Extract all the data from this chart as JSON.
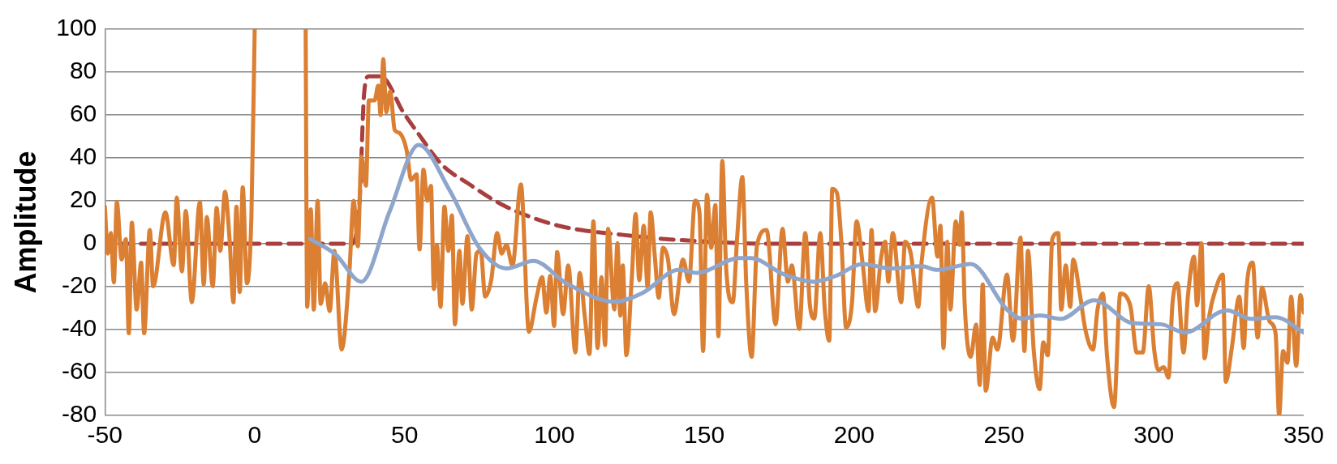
{
  "chart_data": {
    "type": "line",
    "ylabel": "Amplitude",
    "xlim": [
      -50,
      350
    ],
    "xticks": [
      -50,
      0,
      50,
      100,
      150,
      200,
      250,
      300,
      350
    ],
    "ylim": [
      -80,
      100
    ],
    "yticks": [
      -80,
      -60,
      -40,
      -20,
      0,
      20,
      40,
      60,
      80,
      100
    ],
    "grid": "y",
    "marker": "none",
    "legend": false,
    "series": [
      {
        "color": "#a83f3f",
        "line_style": "dashed",
        "x": [
          -45,
          0,
          17,
          32.5,
          35,
          36.5,
          38,
          42,
          49.7,
          53.7,
          62.7,
          71,
          82,
          92,
          102,
          113,
          123,
          136,
          158.5,
          171,
          200,
          250,
          300,
          350
        ],
        "values": [
          0,
          0,
          0,
          0,
          20,
          70,
          78,
          78,
          61,
          53,
          36.5,
          28.3,
          18.6,
          12.5,
          8.2,
          5.6,
          4.1,
          2.3,
          0.5,
          0,
          0,
          0,
          0,
          0
        ]
      },
      {
        "color": "#db7f33",
        "line_style": "solid",
        "x": [
          -50,
          -49,
          -48,
          -47,
          -46,
          -44.4,
          -43,
          -42,
          -41,
          -39.4,
          -37.9,
          -36.9,
          -35,
          -33.9,
          -29.8,
          -27,
          -26,
          -24.3,
          -23,
          -21,
          -18.3,
          -17,
          -16,
          -14,
          -12.7,
          -11.5,
          -9.9,
          -8.4,
          -7.1,
          -6.1,
          -5,
          -4,
          -2.6,
          -1.1,
          0,
          8,
          17,
          17.5,
          18.7,
          19.7,
          21,
          22,
          23.5,
          25,
          26.6,
          29,
          31.6,
          33,
          34.4,
          35.6,
          37.1,
          38.1,
          40,
          41.2,
          42,
          42.9,
          43.9,
          45.2,
          46.7,
          48.2,
          50.7,
          52.2,
          54,
          55,
          56.3,
          57.6,
          58.8,
          59.8,
          60.8,
          62,
          63.3,
          64.6,
          65.8,
          66.8,
          68.3,
          69.3,
          71,
          72.4,
          74,
          75.4,
          76.9,
          78.9,
          80.9,
          82.4,
          84,
          86,
          88.8,
          91.5,
          94,
          95.9,
          97.3,
          98.6,
          99.9,
          100.9,
          102.9,
          104.6,
          107,
          108.4,
          110.2,
          111.7,
          113,
          114.4,
          115.7,
          116.9,
          117.9,
          120,
          121,
          122,
          122.8,
          124,
          125.8,
          127.1,
          128.3,
          129.8,
          131.1,
          132.1,
          133.5,
          134.8,
          136.2,
          137.9,
          139.9,
          142.9,
          144.9,
          146.9,
          148.4,
          149.6,
          150.9,
          152.3,
          153.7,
          154.7,
          156,
          157.3,
          159.5,
          161,
          162.7,
          164,
          165.8,
          167.6,
          170.8,
          173.8,
          176.1,
          177.9,
          179.2,
          181.7,
          183.7,
          185.2,
          186.7,
          188.7,
          190.2,
          191.7,
          192.7,
          194.3,
          195.8,
          197.3,
          199.3,
          200.8,
          202.8,
          204.8,
          205.8,
          207,
          208.9,
          210.4,
          211.4,
          212.9,
          215.7,
          217,
          218.9,
          221.4,
          222.5,
          226,
          227.8,
          228.8,
          229.8,
          231.1,
          232.1,
          233.9,
          235.1,
          235.9,
          236.9,
          238.9,
          240.7,
          241.9,
          242.9,
          243.9,
          246.2,
          247.8,
          251,
          253,
          255.5,
          256.8,
          258,
          259.9,
          261.9,
          263.1,
          264.6,
          266.1,
          268.1,
          269.1,
          270.6,
          272.1,
          273.1,
          275.2,
          277.2,
          279.7,
          281.2,
          283,
          284.4,
          286.7,
          288.8,
          290.8,
          292.3,
          294.3,
          296.3,
          298.3,
          300.1,
          301.5,
          303.3,
          304.9,
          306.2,
          307.9,
          309.9,
          311.4,
          313.4,
          314.4,
          315.9,
          316.9,
          318.5,
          320.5,
          323,
          324,
          326,
          328.5,
          330,
          331,
          333,
          334.6,
          336.1,
          338.6,
          340.6,
          341.8,
          343.1,
          344.6,
          345.8,
          347.5,
          348.9,
          350
        ],
        "values": [
          17.3,
          -4.6,
          5,
          -18,
          19.4,
          -7.4,
          2.2,
          -41.7,
          9.8,
          -30.7,
          -8.8,
          -41.7,
          6.4,
          -19.8,
          14.6,
          -10,
          21.5,
          -12.9,
          15.3,
          -27.3,
          19.4,
          -19,
          12.5,
          -19.8,
          16.7,
          -3.3,
          24.2,
          2.2,
          -27.3,
          17.3,
          -22.5,
          26.3,
          -18.4,
          13.2,
          100,
          null,
          100,
          -29.4,
          16,
          -30.7,
          20,
          -28,
          -18.4,
          -31.4,
          -3.3,
          -49.3,
          -12.9,
          20,
          -1.2,
          40.7,
          27,
          66.8,
          66.8,
          73.7,
          60,
          86,
          61.3,
          71,
          53,
          51.7,
          43.4,
          29.7,
          32.4,
          -2.6,
          34.5,
          20.1,
          27,
          -21.1,
          -0.5,
          -29.4,
          17.3,
          -3.3,
          13.2,
          -37.6,
          -3.3,
          -28,
          3.6,
          -30.7,
          -4.6,
          -3.3,
          -24.6,
          -17,
          5,
          -4.6,
          -0.5,
          -10.1,
          27.6,
          -41,
          -25.2,
          -15.6,
          -32.1,
          -15,
          -38.3,
          -3.9,
          -32.8,
          -10.1,
          -50.7,
          -13.6,
          -34.9,
          -51.4,
          10.5,
          -48.6,
          -15.6,
          -47.2,
          7,
          -30.7,
          0.2,
          -33.5,
          -10.1,
          -52,
          -16.3,
          13.9,
          -17,
          8.4,
          -20.4,
          14.6,
          -6,
          -25.2,
          -1.9,
          -7.4,
          -32.8,
          -7.4,
          -17.7,
          20.1,
          14.6,
          -50,
          22.8,
          -1.9,
          18,
          -43.1,
          38.6,
          -11.5,
          -27.3,
          3.6,
          31.1,
          -18.4,
          -52.7,
          -0.5,
          6.4,
          -37.6,
          7,
          -17.7,
          -10.1,
          -39.7,
          5,
          -28,
          -34.9,
          5,
          -30.7,
          -45.2,
          25.6,
          23.5,
          -0.5,
          -39,
          -27.3,
          10.5,
          -8.8,
          -31.4,
          6.4,
          -31.4,
          -7.4,
          0.9,
          -17.7,
          5,
          -27.3,
          0.9,
          -4.6,
          -29.4,
          -8.8,
          21.5,
          -6,
          8.4,
          -48.6,
          0.9,
          -30.7,
          10.5,
          -0.5,
          14.6,
          -28.7,
          -52.7,
          -37.6,
          -65.8,
          -19,
          -68.5,
          -43.8,
          -49.3,
          -14.3,
          -45.2,
          2.9,
          -50,
          -3.3,
          -49.3,
          -67.8,
          -45.9,
          -52,
          2.2,
          5,
          -30.7,
          -10.1,
          -29.4,
          -7.4,
          -22.5,
          -40.4,
          -49.3,
          -30.7,
          -23.2,
          -52.7,
          -76.1,
          -23.2,
          -24.6,
          -30,
          -50.7,
          -50.7,
          -19.8,
          -49.3,
          -58.9,
          -57.5,
          -62.4,
          -28,
          -18.4,
          -50.7,
          -23.9,
          -6,
          -28.7,
          0.2,
          -53.4,
          -33.5,
          -21.8,
          -14.3,
          -64.4,
          -48.6,
          -24.6,
          -48.6,
          -19.8,
          -8.8,
          -43.8,
          -20.4,
          -36.2,
          -41.7,
          -80,
          -50,
          -55.5,
          -24.6,
          -56.9,
          -23.9,
          -32.1
        ]
      },
      {
        "color": "#8ea5cc",
        "line_style": "solid",
        "x": [
          18.5,
          27,
          35.6,
          45,
          54.7,
          65,
          75,
          84,
          93,
          104,
          120,
          129.3,
          141.5,
          147.5,
          161.6,
          165.6,
          176.6,
          186.6,
          193.8,
          202.8,
          212,
          222.5,
          227.7,
          238.9,
          251,
          256,
          262,
          269,
          280,
          293,
          302.3,
          310.3,
          324.4,
          332.5,
          340.6,
          350
        ],
        "values": [
          2.2,
          -5,
          -17.7,
          15,
          46,
          25,
          -2,
          -11.5,
          -8,
          -18.4,
          -27,
          -23,
          -12.2,
          -13.6,
          -6.7,
          -6.7,
          -14.3,
          -17.7,
          -15,
          -9.4,
          -11.5,
          -10.5,
          -12.2,
          -9.4,
          -30.7,
          -34.9,
          -33.4,
          -35,
          -26.3,
          -37,
          -37.5,
          -41.4,
          -31,
          -35,
          -34.2,
          -41.4
        ]
      }
    ]
  }
}
